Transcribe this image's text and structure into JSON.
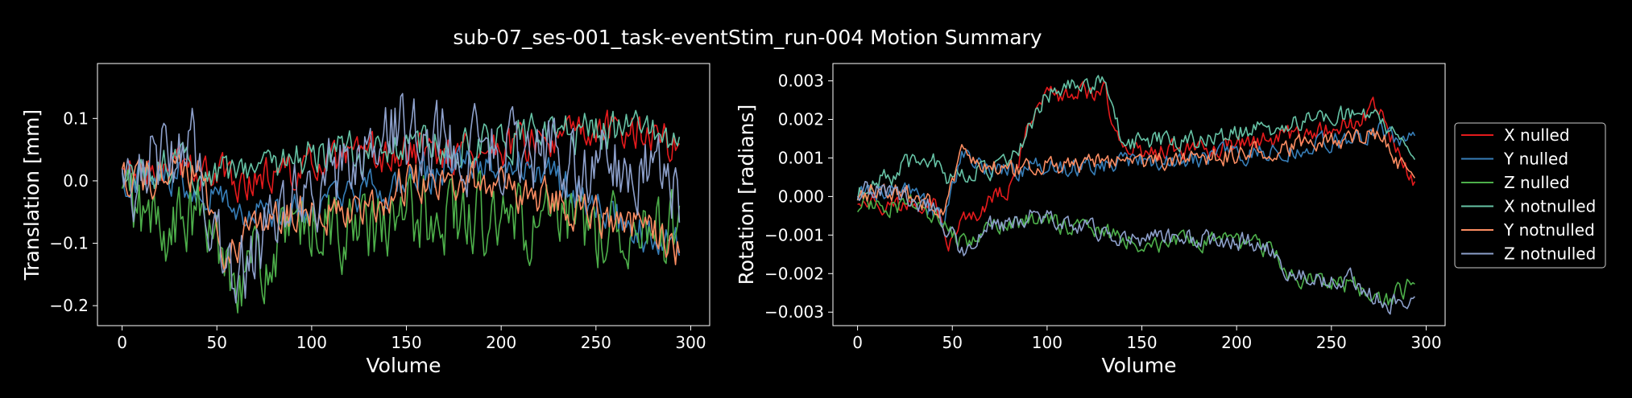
{
  "figure": {
    "title": "sub-07_ses-001_task-eventStim_run-004 Motion Summary",
    "background": "#000000"
  },
  "legend": {
    "placement": "center-right, outside",
    "entries": [
      {
        "label": "X nulled",
        "color": "#e41a1c"
      },
      {
        "label": "Y nulled",
        "color": "#377eb8"
      },
      {
        "label": "Z nulled",
        "color": "#4daf4a"
      },
      {
        "label": "X notnulled",
        "color": "#66c2a5"
      },
      {
        "label": "Y notnulled",
        "color": "#fc8d62"
      },
      {
        "label": "Z notnulled",
        "color": "#8da0cb"
      }
    ]
  },
  "chart_data": [
    {
      "type": "line",
      "xlabel": "Volume",
      "ylabel": "Translation [mm]",
      "xlim": [
        -13,
        310
      ],
      "ylim": [
        -0.232,
        0.188
      ],
      "xticks": [
        0,
        50,
        100,
        150,
        200,
        250,
        300
      ],
      "yticks": [
        -0.2,
        -0.1,
        0.0,
        0.1
      ],
      "ytick_labels": [
        "−0.2",
        "−0.1",
        "0.0",
        "0.1"
      ],
      "grid": false,
      "n_volumes": 295,
      "series": [
        {
          "name": "X nulled",
          "color": "#e41a1c",
          "keypoints": [
            [
              0,
              0.01
            ],
            [
              20,
              0.015
            ],
            [
              40,
              0.02
            ],
            [
              60,
              0.0
            ],
            [
              80,
              0.01
            ],
            [
              100,
              0.02
            ],
            [
              130,
              0.035
            ],
            [
              160,
              0.045
            ],
            [
              200,
              0.055
            ],
            [
              240,
              0.07
            ],
            [
              270,
              0.085
            ],
            [
              294,
              0.06
            ]
          ]
        },
        {
          "name": "Y nulled",
          "color": "#377eb8",
          "keypoints": [
            [
              0,
              0.005
            ],
            [
              30,
              0.01
            ],
            [
              50,
              -0.02
            ],
            [
              70,
              -0.06
            ],
            [
              100,
              -0.05
            ],
            [
              130,
              -0.02
            ],
            [
              150,
              0.0
            ],
            [
              180,
              0.02
            ],
            [
              210,
              0.03
            ],
            [
              230,
              0.0
            ],
            [
              250,
              -0.03
            ],
            [
              270,
              -0.08
            ],
            [
              294,
              -0.1
            ]
          ]
        },
        {
          "name": "Z nulled",
          "color": "#4daf4a",
          "keypoints": [
            [
              0,
              -0.03
            ],
            [
              20,
              -0.08
            ],
            [
              40,
              -0.06
            ],
            [
              60,
              -0.14
            ],
            [
              80,
              -0.13
            ],
            [
              100,
              -0.06
            ],
            [
              130,
              -0.09
            ],
            [
              160,
              -0.05
            ],
            [
              200,
              -0.07
            ],
            [
              240,
              -0.08
            ],
            [
              270,
              -0.06
            ],
            [
              294,
              -0.1
            ]
          ]
        },
        {
          "name": "X notnulled",
          "color": "#66c2a5",
          "keypoints": [
            [
              0,
              0.01
            ],
            [
              30,
              0.02
            ],
            [
              50,
              0.02
            ],
            [
              80,
              0.03
            ],
            [
              110,
              0.04
            ],
            [
              150,
              0.055
            ],
            [
              200,
              0.065
            ],
            [
              240,
              0.075
            ],
            [
              270,
              0.08
            ],
            [
              294,
              0.07
            ]
          ]
        },
        {
          "name": "Y notnulled",
          "color": "#fc8d62",
          "keypoints": [
            [
              0,
              0.01
            ],
            [
              20,
              0.0
            ],
            [
              40,
              0.01
            ],
            [
              55,
              -0.12
            ],
            [
              65,
              -0.08
            ],
            [
              80,
              -0.06
            ],
            [
              100,
              -0.05
            ],
            [
              130,
              -0.04
            ],
            [
              150,
              0.0
            ],
            [
              180,
              0.0
            ],
            [
              210,
              -0.02
            ],
            [
              240,
              -0.04
            ],
            [
              270,
              -0.07
            ],
            [
              294,
              -0.11
            ]
          ]
        },
        {
          "name": "Z notnulled",
          "color": "#8da0cb",
          "keypoints": [
            [
              0,
              0.0
            ],
            [
              20,
              0.04
            ],
            [
              40,
              0.05
            ],
            [
              55,
              -0.16
            ],
            [
              70,
              -0.12
            ],
            [
              90,
              -0.04
            ],
            [
              120,
              0.02
            ],
            [
              140,
              0.08
            ],
            [
              175,
              0.06
            ],
            [
              210,
              0.05
            ],
            [
              240,
              0.03
            ],
            [
              270,
              0.02
            ],
            [
              294,
              -0.02
            ]
          ]
        }
      ]
    },
    {
      "type": "line",
      "xlabel": "Volume",
      "ylabel": "Rotation [radians]",
      "xlim": [
        -13,
        310
      ],
      "ylim": [
        -0.00335,
        0.00345
      ],
      "xticks": [
        0,
        50,
        100,
        150,
        200,
        250,
        300
      ],
      "yticks": [
        -0.003,
        -0.002,
        -0.001,
        0.0,
        0.001,
        0.002,
        0.003
      ],
      "ytick_labels": [
        "−0.003",
        "−0.002",
        "−0.001",
        "0.000",
        "0.001",
        "0.002",
        "0.003"
      ],
      "grid": false,
      "n_volumes": 295,
      "series": [
        {
          "name": "X nulled",
          "color": "#e41a1c",
          "keypoints": [
            [
              0,
              0.0
            ],
            [
              20,
              -0.0003
            ],
            [
              40,
              0.0
            ],
            [
              48,
              -0.0012
            ],
            [
              60,
              -0.0005
            ],
            [
              80,
              0.0002
            ],
            [
              95,
              0.0025
            ],
            [
              130,
              0.0028
            ],
            [
              140,
              0.0012
            ],
            [
              180,
              0.0012
            ],
            [
              220,
              0.0015
            ],
            [
              250,
              0.0017
            ],
            [
              275,
              0.0023
            ],
            [
              294,
              0.0002
            ]
          ]
        },
        {
          "name": "Y nulled",
          "color": "#377eb8",
          "keypoints": [
            [
              0,
              0.0001
            ],
            [
              30,
              0.0001
            ],
            [
              45,
              -0.0006
            ],
            [
              55,
              0.001
            ],
            [
              80,
              0.0007
            ],
            [
              120,
              0.0008
            ],
            [
              150,
              0.0009
            ],
            [
              200,
              0.0011
            ],
            [
              250,
              0.0014
            ],
            [
              275,
              0.0017
            ],
            [
              294,
              0.0014
            ]
          ]
        },
        {
          "name": "Z nulled",
          "color": "#4daf4a",
          "keypoints": [
            [
              0,
              -0.0002
            ],
            [
              20,
              -0.0002
            ],
            [
              40,
              -0.0004
            ],
            [
              55,
              -0.0012
            ],
            [
              70,
              -0.0009
            ],
            [
              90,
              -0.0006
            ],
            [
              120,
              -0.0008
            ],
            [
              150,
              -0.0012
            ],
            [
              190,
              -0.0012
            ],
            [
              215,
              -0.0013
            ],
            [
              230,
              -0.0021
            ],
            [
              260,
              -0.0023
            ],
            [
              280,
              -0.0027
            ],
            [
              294,
              -0.0022
            ]
          ]
        },
        {
          "name": "X notnulled",
          "color": "#66c2a5",
          "keypoints": [
            [
              0,
              0.0001
            ],
            [
              20,
              0.0006
            ],
            [
              35,
              0.0012
            ],
            [
              48,
              0.0005
            ],
            [
              60,
              0.0006
            ],
            [
              80,
              0.0008
            ],
            [
              100,
              0.0027
            ],
            [
              130,
              0.003
            ],
            [
              140,
              0.0014
            ],
            [
              180,
              0.0015
            ],
            [
              220,
              0.0018
            ],
            [
              250,
              0.0022
            ],
            [
              275,
              0.002
            ],
            [
              294,
              0.0013
            ]
          ]
        },
        {
          "name": "Y notnulled",
          "color": "#fc8d62",
          "keypoints": [
            [
              0,
              0.0001
            ],
            [
              25,
              0.0001
            ],
            [
              45,
              -0.0004
            ],
            [
              55,
              0.0011
            ],
            [
              75,
              0.0007
            ],
            [
              110,
              0.0008
            ],
            [
              150,
              0.0009
            ],
            [
              200,
              0.0011
            ],
            [
              250,
              0.0014
            ],
            [
              275,
              0.0016
            ],
            [
              294,
              0.0003
            ]
          ]
        },
        {
          "name": "Z notnulled",
          "color": "#8da0cb",
          "keypoints": [
            [
              0,
              0.0002
            ],
            [
              20,
              0.0001
            ],
            [
              40,
              -0.0003
            ],
            [
              55,
              -0.0014
            ],
            [
              70,
              -0.0008
            ],
            [
              90,
              -0.0005
            ],
            [
              120,
              -0.0008
            ],
            [
              150,
              -0.0011
            ],
            [
              190,
              -0.0011
            ],
            [
              215,
              -0.0012
            ],
            [
              230,
              -0.0021
            ],
            [
              260,
              -0.0022
            ],
            [
              280,
              -0.0028
            ],
            [
              294,
              -0.0025
            ]
          ]
        }
      ]
    }
  ]
}
